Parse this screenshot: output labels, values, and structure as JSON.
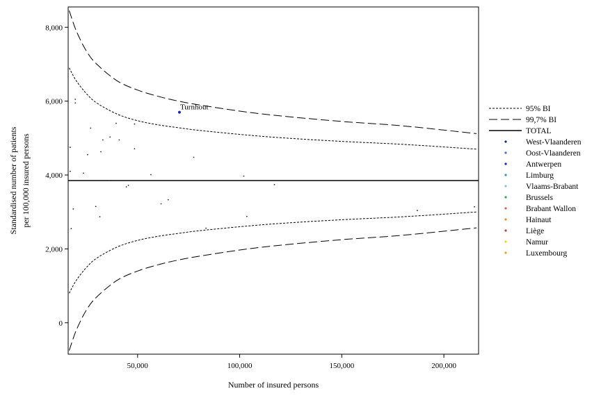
{
  "chart_data": {
    "type": "scatter",
    "xlabel": "Number of insured persons",
    "ylabel_lines": [
      "Standardised number of patients",
      "per 100,000 insured persons"
    ],
    "xlim": [
      16000,
      217000
    ],
    "ylim": [
      -850,
      8550
    ],
    "x_ticks": [
      50000,
      100000,
      150000,
      200000
    ],
    "x_tick_labels": [
      "50,000",
      "100,000",
      "150,000",
      "200,000"
    ],
    "y_ticks": [
      0,
      2000,
      4000,
      6000,
      8000
    ],
    "y_tick_labels": [
      "0",
      "2,000",
      "4,000",
      "6,000",
      "8,000"
    ],
    "total_value": 3850,
    "bands": {
      "x": [
        16500,
        20000,
        25000,
        30000,
        40000,
        50000,
        60000,
        70000,
        80000,
        100000,
        120000,
        150000,
        180000,
        216000
      ],
      "upper_95": [
        6900,
        6550,
        6200,
        5950,
        5650,
        5470,
        5360,
        5280,
        5210,
        5100,
        5010,
        4910,
        4830,
        4700
      ],
      "lower_95": [
        800,
        1150,
        1500,
        1750,
        2050,
        2230,
        2340,
        2420,
        2490,
        2600,
        2690,
        2790,
        2870,
        3000
      ],
      "upper_997": [
        8450,
        7900,
        7350,
        7000,
        6550,
        6300,
        6130,
        6000,
        5900,
        5730,
        5600,
        5450,
        5330,
        5120
      ],
      "lower_997": [
        -750,
        -200,
        350,
        700,
        1150,
        1400,
        1570,
        1700,
        1800,
        1970,
        2100,
        2250,
        2370,
        2570
      ]
    },
    "points": [
      {
        "x": 17000,
        "y": 4750
      },
      {
        "x": 17000,
        "y": 4100
      },
      {
        "x": 17500,
        "y": 2550
      },
      {
        "x": 18500,
        "y": 3080
      },
      {
        "x": 19500,
        "y": 6050
      },
      {
        "x": 19500,
        "y": 5950
      },
      {
        "x": 23500,
        "y": 4050
      },
      {
        "x": 25500,
        "y": 4550
      },
      {
        "x": 27000,
        "y": 5270
      },
      {
        "x": 29500,
        "y": 3150
      },
      {
        "x": 31500,
        "y": 2870
      },
      {
        "x": 32000,
        "y": 4630
      },
      {
        "x": 33000,
        "y": 4950
      },
      {
        "x": 36500,
        "y": 5030
      },
      {
        "x": 37000,
        "y": 3850
      },
      {
        "x": 39500,
        "y": 5400
      },
      {
        "x": 41000,
        "y": 4950
      },
      {
        "x": 44500,
        "y": 3680
      },
      {
        "x": 45500,
        "y": 3720
      },
      {
        "x": 48500,
        "y": 5380
      },
      {
        "x": 48500,
        "y": 4710
      },
      {
        "x": 56500,
        "y": 4010
      },
      {
        "x": 61500,
        "y": 3220
      },
      {
        "x": 65000,
        "y": 3330
      },
      {
        "x": 77500,
        "y": 4480
      },
      {
        "x": 83500,
        "y": 2560
      },
      {
        "x": 102000,
        "y": 3970
      },
      {
        "x": 103500,
        "y": 2880
      },
      {
        "x": 117000,
        "y": 3740
      },
      {
        "x": 187000,
        "y": 3040
      },
      {
        "x": 215000,
        "y": 3140
      }
    ],
    "highlight": {
      "label": "Turnhout",
      "x": 70500,
      "y": 5700,
      "color": "#1f1fcf"
    },
    "legend": {
      "placement": "right",
      "lines": [
        {
          "label": "95% BI",
          "style": "dotted"
        },
        {
          "label": "99,7% BI",
          "style": "dashed"
        },
        {
          "label": "TOTAL",
          "style": "solid"
        }
      ],
      "markers": [
        {
          "label": "West-Vlaanderen",
          "color": "#1a237e"
        },
        {
          "label": "Oost-Vlaanderen",
          "color": "#3f6fd8"
        },
        {
          "label": "Antwerpen",
          "color": "#1f1fcf"
        },
        {
          "label": "Limburg",
          "color": "#2f93d6"
        },
        {
          "label": "Vlaams-Brabant",
          "color": "#7cc4e8"
        },
        {
          "label": "Brussels",
          "color": "#2ea84a"
        },
        {
          "label": "Brabant Wallon",
          "color": "#d9683a"
        },
        {
          "label": "Hainaut",
          "color": "#f08c1c"
        },
        {
          "label": "Liège",
          "color": "#b5483a"
        },
        {
          "label": "Namur",
          "color": "#f2d21a"
        },
        {
          "label": "Luxembourg",
          "color": "#f0a020"
        }
      ]
    }
  }
}
